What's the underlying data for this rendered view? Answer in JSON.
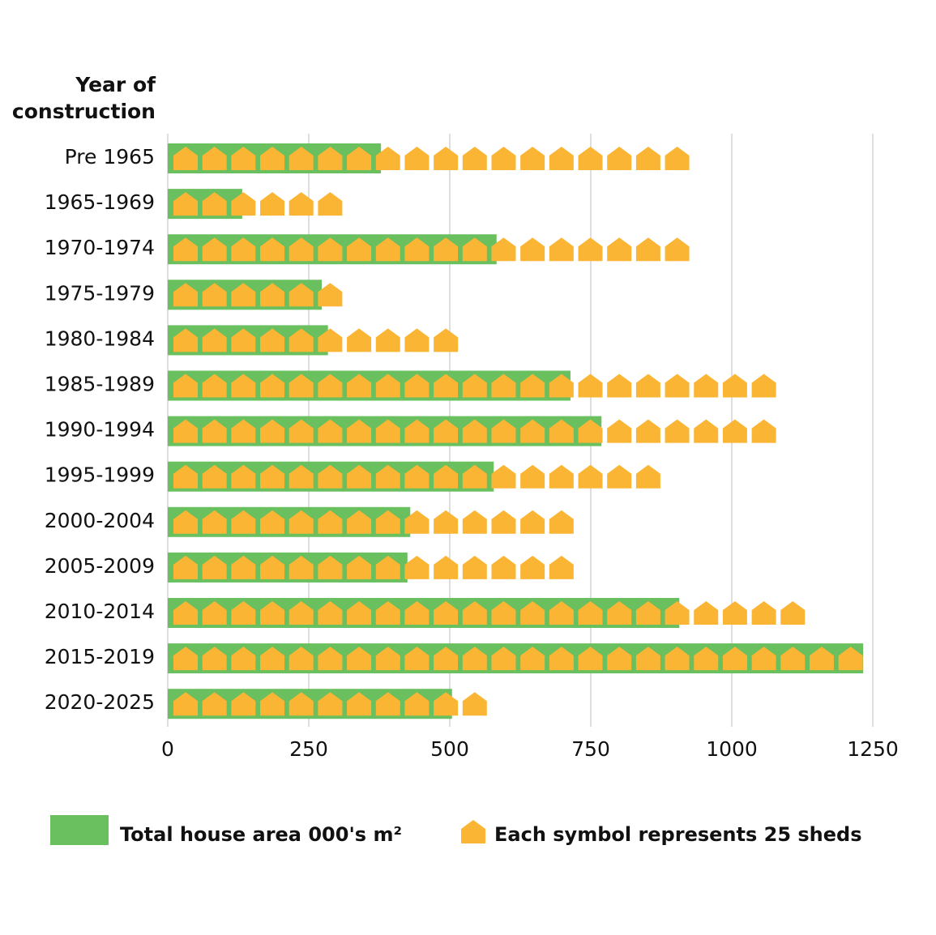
{
  "chart_data": {
    "type": "bar",
    "y_axis_title": "Year of construction",
    "categories": [
      "Pre 1965",
      "1965-1969",
      "1970-1974",
      "1975-1979",
      "1980-1984",
      "1985-1989",
      "1990-1994",
      "1995-1999",
      "2000-2004",
      "2005-2009",
      "2010-2014",
      "2015-2019",
      "2020-2025"
    ],
    "series": [
      {
        "name": "Total house area 000's m²",
        "color": "#6abf5e",
        "values": [
          378,
          132,
          583,
          273,
          284,
          714,
          769,
          578,
          430,
          425,
          907,
          1233,
          504
        ]
      },
      {
        "name": "Each symbol represents 25 sheds",
        "color": "#fbb534",
        "marker": "symbol-count",
        "values": [
          18,
          6,
          18,
          6,
          10,
          21,
          21,
          17,
          14,
          14,
          22,
          24,
          11
        ]
      }
    ],
    "xlim": [
      0,
      1250
    ],
    "xticks": [
      0,
      250,
      500,
      750,
      1000,
      1250
    ],
    "grid": true
  }
}
